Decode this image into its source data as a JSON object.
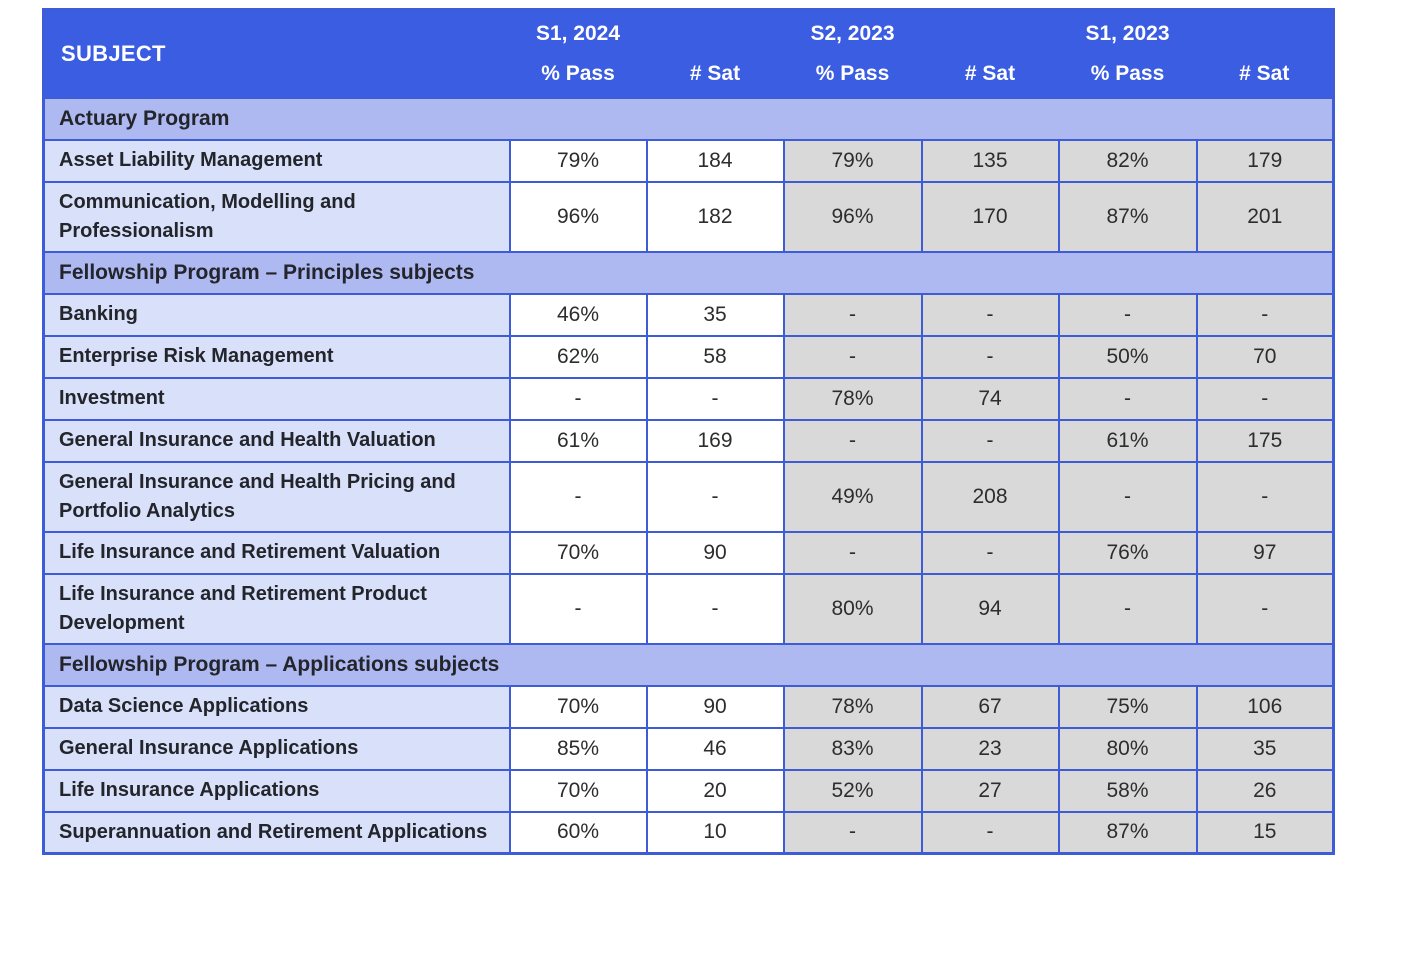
{
  "table": {
    "header": {
      "subject_label": "SUBJECT",
      "columns": [
        {
          "season": "S1, 2024",
          "label": "% Pass"
        },
        {
          "season": "",
          "label": "# Sat"
        },
        {
          "season": "S2, 2023",
          "label": "% Pass"
        },
        {
          "season": "",
          "label": "# Sat"
        },
        {
          "season": "S1, 2023",
          "label": "% Pass"
        },
        {
          "season": "",
          "label": "# Sat"
        }
      ]
    },
    "sections": [
      {
        "title": "Actuary Program",
        "rows": [
          {
            "subject": "Asset Liability Management",
            "values": [
              "79%",
              "184",
              "79%",
              "135",
              "82%",
              "179"
            ]
          },
          {
            "subject": "Communication, Modelling and Professionalism",
            "values": [
              "96%",
              "182",
              "96%",
              "170",
              "87%",
              "201"
            ]
          }
        ]
      },
      {
        "title": "Fellowship Program – Principles subjects",
        "rows": [
          {
            "subject": "Banking",
            "values": [
              "46%",
              "35",
              "-",
              "-",
              "-",
              "-"
            ]
          },
          {
            "subject": "Enterprise Risk Management",
            "values": [
              "62%",
              "58",
              "-",
              "-",
              "50%",
              "70"
            ]
          },
          {
            "subject": "Investment",
            "values": [
              "-",
              "-",
              "78%",
              "74",
              "-",
              "-"
            ]
          },
          {
            "subject": "General Insurance and Health Valuation",
            "values": [
              "61%",
              "169",
              "-",
              "-",
              "61%",
              "175"
            ]
          },
          {
            "subject": "General Insurance and Health Pricing and Portfolio Analytics",
            "values": [
              "-",
              "-",
              "49%",
              "208",
              "-",
              "-"
            ]
          },
          {
            "subject": "Life Insurance and Retirement Valuation",
            "values": [
              "70%",
              "90",
              "-",
              "-",
              "76%",
              "97"
            ]
          },
          {
            "subject": "Life Insurance and Retirement Product Development",
            "values": [
              "-",
              "-",
              "80%",
              "94",
              "-",
              "-"
            ]
          }
        ]
      },
      {
        "title": "Fellowship Program – Applications subjects",
        "rows": [
          {
            "subject": "Data Science Applications",
            "values": [
              "70%",
              "90",
              "78%",
              "67",
              "75%",
              "106"
            ]
          },
          {
            "subject": "General Insurance Applications",
            "values": [
              "85%",
              "46",
              "83%",
              "23",
              "80%",
              "35"
            ]
          },
          {
            "subject": "Life Insurance Applications",
            "values": [
              "70%",
              "20",
              "52%",
              "27",
              "58%",
              "26"
            ]
          },
          {
            "subject": "Superannuation and Retirement Applications",
            "values": [
              "60%",
              "10",
              "-",
              "-",
              "87%",
              "15"
            ]
          }
        ]
      }
    ],
    "colors": {
      "header_blue": "#3a5de2",
      "section_band": "#aeb9f2",
      "subject_cell": "#d9e1fa",
      "current_semester_cell": "#ffffff",
      "past_semester_cell": "#d9d9d9",
      "border_blue": "#3d5cd6",
      "header_text": "#ffffff",
      "body_text": "#23252b"
    }
  },
  "chart_data": {
    "type": "table",
    "title": "",
    "columns": [
      "SUBJECT",
      "S1, 2024 % Pass",
      "S1, 2024 # Sat",
      "S2, 2023 % Pass",
      "S2, 2023 # Sat",
      "S1, 2023 % Pass",
      "S1, 2023 # Sat"
    ],
    "rows": [
      [
        "Actuary Program",
        "",
        "",
        "",
        "",
        "",
        ""
      ],
      [
        "Asset Liability Management",
        "79%",
        "184",
        "79%",
        "135",
        "82%",
        "179"
      ],
      [
        "Communication, Modelling and Professionalism",
        "96%",
        "182",
        "96%",
        "170",
        "87%",
        "201"
      ],
      [
        "Fellowship Program – Principles subjects",
        "",
        "",
        "",
        "",
        "",
        ""
      ],
      [
        "Banking",
        "46%",
        "35",
        "-",
        "-",
        "-",
        "-"
      ],
      [
        "Enterprise Risk Management",
        "62%",
        "58",
        "-",
        "-",
        "50%",
        "70"
      ],
      [
        "Investment",
        "-",
        "-",
        "78%",
        "74",
        "-",
        "-"
      ],
      [
        "General Insurance and Health Valuation",
        "61%",
        "169",
        "-",
        "-",
        "61%",
        "175"
      ],
      [
        "General Insurance and Health Pricing and Portfolio Analytics",
        "-",
        "-",
        "49%",
        "208",
        "-",
        "-"
      ],
      [
        "Life Insurance and Retirement Valuation",
        "70%",
        "90",
        "-",
        "-",
        "76%",
        "97"
      ],
      [
        "Life Insurance and Retirement Product Development",
        "-",
        "-",
        "80%",
        "94",
        "-",
        "-"
      ],
      [
        "Fellowship Program – Applications subjects",
        "",
        "",
        "",
        "",
        "",
        ""
      ],
      [
        "Data Science Applications",
        "70%",
        "90",
        "78%",
        "67",
        "75%",
        "106"
      ],
      [
        "General Insurance Applications",
        "85%",
        "46",
        "83%",
        "23",
        "80%",
        "35"
      ],
      [
        "Life Insurance Applications",
        "70%",
        "20",
        "52%",
        "27",
        "58%",
        "26"
      ],
      [
        "Superannuation and Retirement Applications",
        "60%",
        "10",
        "-",
        "-",
        "87%",
        "15"
      ]
    ]
  }
}
